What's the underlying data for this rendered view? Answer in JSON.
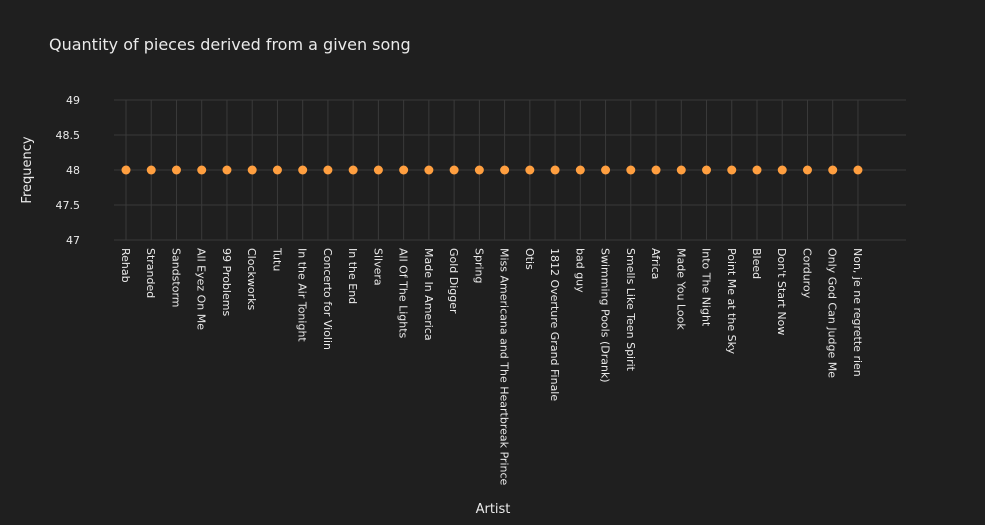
{
  "chart_data": {
    "type": "scatter",
    "title": "Quantity of pieces derived from a given song",
    "xlabel": "Artist",
    "ylabel": "Frequency",
    "ylim": [
      47,
      49
    ],
    "yticks": [
      "47",
      "47.5",
      "48",
      "48.5",
      "49"
    ],
    "grid": true,
    "marker_color": "#ff9f40",
    "categories": [
      "Rehab",
      "Stranded",
      "Sandstorm",
      "All Eyez On Me",
      "99 Problems",
      "Clockworks",
      "Tutu",
      "In the Air Tonight",
      "Concerto for Violin",
      "In the End",
      "Silvera",
      "All Of The Lights",
      "Made In America",
      "Gold Digger",
      "Spring",
      "Miss Americana and The Heartbreak Prince",
      "Otis",
      "1812 Overture Grand Finale",
      "bad guy",
      "Swimming Pools (Drank)",
      "Smells Like Teen Spirit",
      "Africa",
      "Made You Look",
      "Into The Night",
      "Point Me at the Sky",
      "Bleed",
      "Don't Start Now",
      "Corduroy",
      "Only God Can Judge Me",
      "Non, je ne regrette rien"
    ],
    "values": [
      48,
      48,
      48,
      48,
      48,
      48,
      48,
      48,
      48,
      48,
      48,
      48,
      48,
      48,
      48,
      48,
      48,
      48,
      48,
      48,
      48,
      48,
      48,
      48,
      48,
      48,
      48,
      48,
      48,
      48
    ]
  }
}
